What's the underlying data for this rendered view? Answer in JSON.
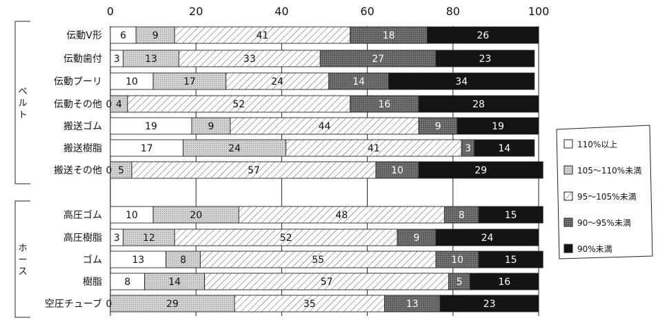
{
  "chart_data": {
    "type": "bar",
    "orientation": "horizontal",
    "stacked": true,
    "xlim": [
      0,
      100
    ],
    "x_ticks": [
      "0",
      "20",
      "40",
      "60",
      "80",
      "100"
    ],
    "grid": true,
    "legend_position": "right",
    "groups": [
      {
        "label": "ベルト",
        "categories": [
          "伝動V形",
          "伝動歯付",
          "伝動プーリ",
          "伝動その他",
          "搬送ゴム",
          "搬送樹脂",
          "搬送その他"
        ]
      },
      {
        "label": "ホース",
        "categories": [
          "高圧ゴム",
          "高圧樹脂",
          "ゴム",
          "樹脂",
          "空圧チューブ"
        ]
      }
    ],
    "categories": [
      "伝動V形",
      "伝動歯付",
      "伝動プーリ",
      "伝動その他",
      "搬送ゴム",
      "搬送樹脂",
      "搬送その他",
      "高圧ゴム",
      "高圧樹脂",
      "ゴム",
      "樹脂",
      "空圧チューブ"
    ],
    "series": [
      {
        "name": "110%以上",
        "fill": "white",
        "values": [
          6,
          3,
          10,
          0,
          19,
          17,
          0,
          10,
          3,
          13,
          8,
          0
        ]
      },
      {
        "name": "105〜110%未満",
        "fill": "dots",
        "values": [
          9,
          13,
          17,
          4,
          9,
          24,
          5,
          20,
          12,
          8,
          14,
          29
        ]
      },
      {
        "name": "95〜105%未満",
        "fill": "hatch",
        "values": [
          41,
          33,
          24,
          52,
          44,
          41,
          57,
          48,
          52,
          55,
          57,
          35
        ]
      },
      {
        "name": "90〜95%未満",
        "fill": "darkgray",
        "values": [
          18,
          27,
          14,
          16,
          9,
          3,
          10,
          8,
          9,
          10,
          5,
          13
        ]
      },
      {
        "name": "90%未満",
        "fill": "black",
        "values": [
          26,
          23,
          34,
          28,
          19,
          14,
          29,
          15,
          24,
          15,
          16,
          23
        ]
      }
    ]
  }
}
